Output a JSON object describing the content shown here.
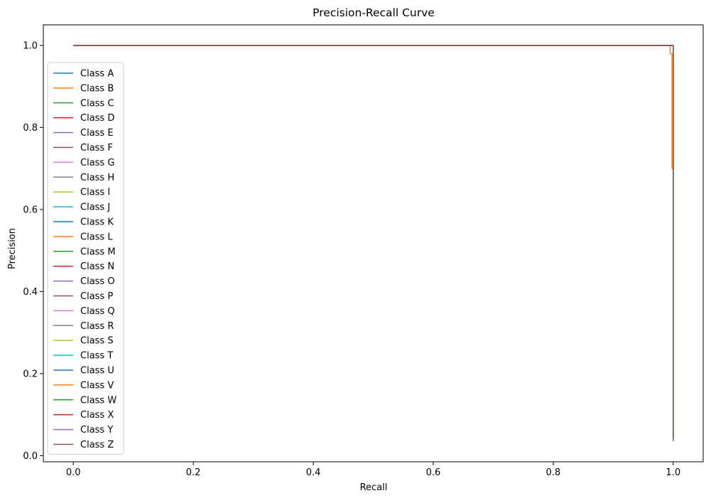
{
  "chart_data": {
    "type": "line",
    "title": "Precision-Recall Curve",
    "xlabel": "Recall",
    "ylabel": "Precision",
    "xlim": [
      -0.05,
      1.05
    ],
    "ylim": [
      -0.015,
      1.05
    ],
    "xticks": [
      0.0,
      0.2,
      0.4,
      0.6,
      0.8,
      1.0
    ],
    "xtick_labels": [
      "0.0",
      "0.2",
      "0.4",
      "0.6",
      "0.8",
      "1.0"
    ],
    "yticks": [
      0.0,
      0.2,
      0.4,
      0.6,
      0.8,
      1.0
    ],
    "ytick_labels": [
      "0.0",
      "0.2",
      "0.4",
      "0.6",
      "0.8",
      "1.0"
    ],
    "grid": false,
    "legend_position": "center-left",
    "series": [
      {
        "name": "Class A",
        "color": "#1f77b4",
        "x": [
          0.0,
          1.0,
          1.0
        ],
        "y": [
          1.0,
          1.0,
          0.04
        ]
      },
      {
        "name": "Class B",
        "color": "#ff7f0e",
        "x": [
          0.0,
          0.995,
          0.995,
          0.998,
          0.998,
          1.0,
          1.0
        ],
        "y": [
          1.0,
          1.0,
          0.98,
          0.98,
          0.7,
          0.7,
          0.04
        ]
      },
      {
        "name": "Class C",
        "color": "#2ca02c",
        "x": [
          0.0,
          1.0,
          1.0
        ],
        "y": [
          1.0,
          1.0,
          0.035
        ]
      },
      {
        "name": "Class D",
        "color": "#d62728",
        "x": [
          0.0,
          1.0,
          1.0
        ],
        "y": [
          1.0,
          1.0,
          0.04
        ]
      },
      {
        "name": "Class E",
        "color": "#9467bd",
        "x": [
          0.0,
          1.0,
          1.0
        ],
        "y": [
          1.0,
          1.0,
          0.04
        ]
      },
      {
        "name": "Class F",
        "color": "#8c564b",
        "x": [
          0.0,
          1.0,
          1.0
        ],
        "y": [
          1.0,
          1.0,
          0.04
        ]
      },
      {
        "name": "Class G",
        "color": "#e377c2",
        "x": [
          0.0,
          1.0,
          1.0
        ],
        "y": [
          1.0,
          1.0,
          0.04
        ]
      },
      {
        "name": "Class H",
        "color": "#7f7f7f",
        "x": [
          0.0,
          1.0,
          1.0
        ],
        "y": [
          1.0,
          1.0,
          0.04
        ]
      },
      {
        "name": "Class I",
        "color": "#bcbd22",
        "x": [
          0.0,
          1.0,
          1.0
        ],
        "y": [
          1.0,
          1.0,
          0.04
        ]
      },
      {
        "name": "Class J",
        "color": "#17becf",
        "x": [
          0.0,
          1.0,
          1.0
        ],
        "y": [
          1.0,
          1.0,
          0.04
        ]
      },
      {
        "name": "Class K",
        "color": "#1f77b4",
        "x": [
          0.0,
          1.0,
          1.0
        ],
        "y": [
          1.0,
          1.0,
          0.04
        ]
      },
      {
        "name": "Class L",
        "color": "#ff7f0e",
        "x": [
          0.0,
          1.0,
          1.0
        ],
        "y": [
          1.0,
          1.0,
          0.04
        ]
      },
      {
        "name": "Class M",
        "color": "#2ca02c",
        "x": [
          0.0,
          1.0,
          1.0
        ],
        "y": [
          1.0,
          1.0,
          0.04
        ]
      },
      {
        "name": "Class N",
        "color": "#d62728",
        "x": [
          0.0,
          1.0,
          1.0
        ],
        "y": [
          1.0,
          1.0,
          0.04
        ]
      },
      {
        "name": "Class O",
        "color": "#9467bd",
        "x": [
          0.0,
          1.0,
          1.0
        ],
        "y": [
          1.0,
          1.0,
          0.04
        ]
      },
      {
        "name": "Class P",
        "color": "#8c564b",
        "x": [
          0.0,
          1.0,
          1.0
        ],
        "y": [
          1.0,
          1.0,
          0.04
        ]
      },
      {
        "name": "Class Q",
        "color": "#e377c2",
        "x": [
          0.0,
          1.0,
          1.0
        ],
        "y": [
          1.0,
          1.0,
          0.04
        ]
      },
      {
        "name": "Class R",
        "color": "#7f7f7f",
        "x": [
          0.0,
          1.0,
          1.0
        ],
        "y": [
          1.0,
          1.0,
          0.04
        ]
      },
      {
        "name": "Class S",
        "color": "#bcbd22",
        "x": [
          0.0,
          1.0,
          1.0
        ],
        "y": [
          1.0,
          1.0,
          0.04
        ]
      },
      {
        "name": "Class T",
        "color": "#17becf",
        "x": [
          0.0,
          1.0,
          1.0
        ],
        "y": [
          1.0,
          1.0,
          0.04
        ]
      },
      {
        "name": "Class U",
        "color": "#1f77b4",
        "x": [
          0.0,
          1.0,
          1.0
        ],
        "y": [
          1.0,
          1.0,
          0.04
        ]
      },
      {
        "name": "Class V",
        "color": "#ff7f0e",
        "x": [
          0.0,
          1.0,
          1.0
        ],
        "y": [
          1.0,
          1.0,
          0.04
        ]
      },
      {
        "name": "Class W",
        "color": "#2ca02c",
        "x": [
          0.0,
          1.0,
          1.0
        ],
        "y": [
          1.0,
          1.0,
          0.04
        ]
      },
      {
        "name": "Class X",
        "color": "#d62728",
        "x": [
          0.0,
          1.0,
          1.0
        ],
        "y": [
          1.0,
          1.0,
          0.04
        ]
      },
      {
        "name": "Class Y",
        "color": "#9467bd",
        "x": [
          0.0,
          1.0,
          1.0
        ],
        "y": [
          1.0,
          1.0,
          0.04
        ]
      },
      {
        "name": "Class Z",
        "color": "#8c564b",
        "x": [
          0.0,
          1.0,
          1.0
        ],
        "y": [
          1.0,
          1.0,
          0.04
        ]
      }
    ]
  }
}
